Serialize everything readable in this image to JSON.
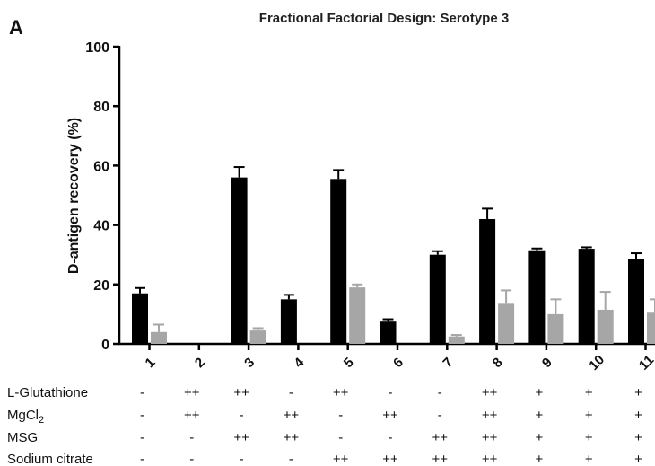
{
  "panel_letter": "A",
  "chart_data": {
    "type": "bar",
    "title": "Fractional Factorial Design: Serotype 3",
    "xlabel": "",
    "ylabel": "D-antigen recovery (%)",
    "ylim": [
      0,
      100
    ],
    "yticks": [
      0,
      20,
      40,
      60,
      80,
      100
    ],
    "grid": false,
    "categories": [
      "1",
      "2",
      "3",
      "4",
      "5",
      "6",
      "7",
      "8",
      "9",
      "10",
      "11"
    ],
    "series": [
      {
        "color": "#000000",
        "values": [
          17,
          0,
          56,
          15,
          55.5,
          7.5,
          30,
          42,
          31.5,
          32,
          28.5
        ],
        "errors": [
          1.8,
          0,
          3.5,
          1.5,
          3,
          0.8,
          1.2,
          3.5,
          0.6,
          0.5,
          2
        ]
      },
      {
        "color": "#a6a6a6",
        "values": [
          4,
          0,
          4.5,
          0,
          19,
          0,
          2.5,
          13.5,
          10,
          11.5,
          10.5
        ],
        "errors": [
          2.5,
          0,
          0.8,
          0,
          1,
          0,
          0.5,
          4.5,
          5,
          6,
          4.5
        ]
      }
    ],
    "factor_table": {
      "rows": [
        {
          "label": "L-Glutathione",
          "levels": [
            "-",
            "++",
            "++",
            "-",
            "++",
            "-",
            "-",
            "++",
            "+",
            "+",
            "+"
          ]
        },
        {
          "label": "MgCl",
          "label_sub": "2",
          "levels": [
            "-",
            "++",
            "-",
            "++",
            "-",
            "++",
            "-",
            "++",
            "+",
            "+",
            "+"
          ]
        },
        {
          "label": "MSG",
          "levels": [
            "-",
            "-",
            "++",
            "++",
            "-",
            "-",
            "++",
            "++",
            "+",
            "+",
            "+"
          ]
        },
        {
          "label": "Sodium citrate",
          "levels": [
            "-",
            "-",
            "-",
            "-",
            "++",
            "++",
            "++",
            "++",
            "+",
            "+",
            "+"
          ]
        }
      ]
    }
  }
}
